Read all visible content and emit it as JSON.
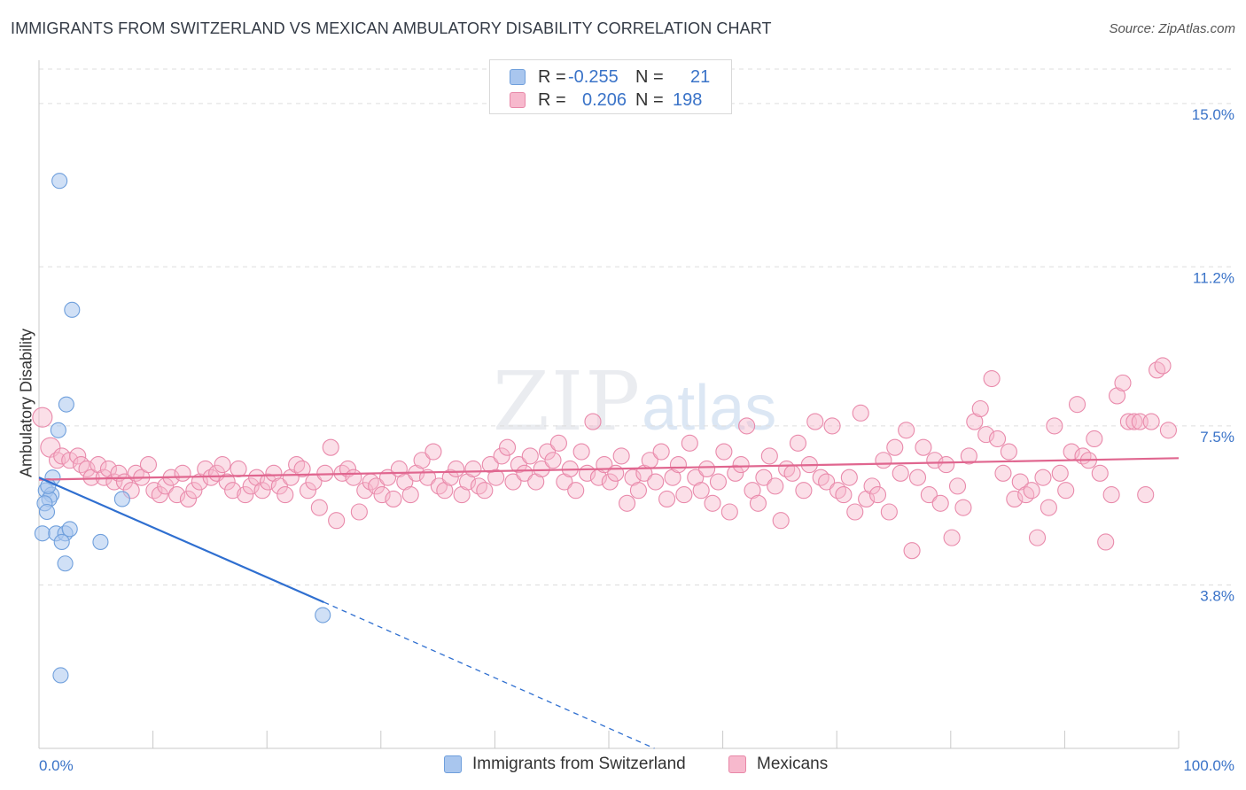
{
  "title": "IMMIGRANTS FROM SWITZERLAND VS MEXICAN AMBULATORY DISABILITY CORRELATION CHART",
  "source": "Source: ZipAtlas.com",
  "watermark": {
    "zip": "ZIP",
    "atlas": "atlas"
  },
  "legend": {
    "r_label": "R =",
    "n_label": "N =",
    "rows": [
      {
        "r": "-0.255",
        "n": "21",
        "color": "#a9c6ee",
        "border": "#6f9fdc"
      },
      {
        "r": "0.206",
        "n": "198",
        "color": "#f7b9cd",
        "border": "#e888a8"
      }
    ]
  },
  "bottom_legend": [
    {
      "label": "Immigrants from Switzerland",
      "color": "#a9c6ee",
      "border": "#6f9fdc"
    },
    {
      "label": "Mexicans",
      "color": "#f7b9cd",
      "border": "#e888a8"
    }
  ],
  "colors": {
    "blue_line": "#2f6fd0",
    "pink_line": "#e0668f",
    "blue_fill": "rgba(169,198,238,0.55)",
    "blue_stroke": "#6f9fdc",
    "pink_fill": "rgba(247,185,205,0.45)",
    "pink_stroke": "#e98aab",
    "tick_label": "#3a73c8",
    "grid": "#dddddd"
  },
  "chart_data": {
    "type": "scatter",
    "title": "IMMIGRANTS FROM SWITZERLAND VS MEXICAN AMBULATORY DISABILITY CORRELATION CHART",
    "xlabel": "",
    "ylabel": "Ambulatory Disability",
    "xlim": [
      0,
      100
    ],
    "ylim": [
      0,
      15.8
    ],
    "x_tick_labels": [
      "0.0%",
      "100.0%"
    ],
    "y_ticks": [
      3.8,
      7.5,
      11.2,
      15.0
    ],
    "y_tick_labels": [
      "3.8%",
      "7.5%",
      "11.2%",
      "15.0%"
    ],
    "grid": "horizontal dashed",
    "series": [
      {
        "name": "Immigrants from Switzerland",
        "trend": {
          "x": [
            0,
            25
          ],
          "y": [
            6.3,
            3.4
          ],
          "dashed_extension_to": [
            54,
            0
          ]
        },
        "points": [
          [
            1.8,
            13.2
          ],
          [
            2.9,
            10.2
          ],
          [
            2.4,
            8.0
          ],
          [
            1.7,
            7.4
          ],
          [
            1.2,
            6.3
          ],
          [
            0.6,
            6.0
          ],
          [
            1.1,
            5.9
          ],
          [
            0.9,
            5.8
          ],
          [
            0.5,
            5.7
          ],
          [
            0.7,
            5.5
          ],
          [
            7.3,
            5.8
          ],
          [
            0.3,
            5.0
          ],
          [
            1.5,
            5.0
          ],
          [
            2.3,
            5.0
          ],
          [
            2.7,
            5.1
          ],
          [
            2.0,
            4.8
          ],
          [
            5.4,
            4.8
          ],
          [
            2.3,
            4.3
          ],
          [
            24.9,
            3.1
          ],
          [
            1.9,
            1.7
          ],
          [
            0.8,
            6.1
          ]
        ]
      },
      {
        "name": "Mexicans",
        "trend": {
          "x": [
            0,
            100
          ],
          "y": [
            6.25,
            6.75
          ]
        },
        "points": [
          [
            0.3,
            7.7
          ],
          [
            1.0,
            7.0
          ],
          [
            1.6,
            6.7
          ],
          [
            2.0,
            6.8
          ],
          [
            2.7,
            6.7
          ],
          [
            3.4,
            6.8
          ],
          [
            3.7,
            6.6
          ],
          [
            4.2,
            6.5
          ],
          [
            4.6,
            6.3
          ],
          [
            5.2,
            6.6
          ],
          [
            5.7,
            6.3
          ],
          [
            6.1,
            6.5
          ],
          [
            6.6,
            6.2
          ],
          [
            7.0,
            6.4
          ],
          [
            7.5,
            6.2
          ],
          [
            8.1,
            6.0
          ],
          [
            8.5,
            6.4
          ],
          [
            9.0,
            6.3
          ],
          [
            9.6,
            6.6
          ],
          [
            10.1,
            6.0
          ],
          [
            10.6,
            5.9
          ],
          [
            11.1,
            6.1
          ],
          [
            11.6,
            6.3
          ],
          [
            12.1,
            5.9
          ],
          [
            12.6,
            6.4
          ],
          [
            13.1,
            5.8
          ],
          [
            13.6,
            6.0
          ],
          [
            14.1,
            6.2
          ],
          [
            14.6,
            6.5
          ],
          [
            15.1,
            6.3
          ],
          [
            15.6,
            6.4
          ],
          [
            16.1,
            6.6
          ],
          [
            16.5,
            6.2
          ],
          [
            17.0,
            6.0
          ],
          [
            17.5,
            6.5
          ],
          [
            18.1,
            5.9
          ],
          [
            18.6,
            6.1
          ],
          [
            19.1,
            6.3
          ],
          [
            19.6,
            6.0
          ],
          [
            20.1,
            6.2
          ],
          [
            20.6,
            6.4
          ],
          [
            21.1,
            6.1
          ],
          [
            21.6,
            5.9
          ],
          [
            22.1,
            6.3
          ],
          [
            22.6,
            6.6
          ],
          [
            23.1,
            6.5
          ],
          [
            23.6,
            6.0
          ],
          [
            24.1,
            6.2
          ],
          [
            24.6,
            5.6
          ],
          [
            25.1,
            6.4
          ],
          [
            25.6,
            7.0
          ],
          [
            26.1,
            5.3
          ],
          [
            26.6,
            6.4
          ],
          [
            27.1,
            6.5
          ],
          [
            27.6,
            6.3
          ],
          [
            28.1,
            5.5
          ],
          [
            28.6,
            6.0
          ],
          [
            29.1,
            6.2
          ],
          [
            29.6,
            6.1
          ],
          [
            30.1,
            5.9
          ],
          [
            30.6,
            6.3
          ],
          [
            31.1,
            5.8
          ],
          [
            31.6,
            6.5
          ],
          [
            32.1,
            6.2
          ],
          [
            32.6,
            5.9
          ],
          [
            33.1,
            6.4
          ],
          [
            33.6,
            6.7
          ],
          [
            34.1,
            6.3
          ],
          [
            34.6,
            6.9
          ],
          [
            35.1,
            6.1
          ],
          [
            35.6,
            6.0
          ],
          [
            36.1,
            6.3
          ],
          [
            36.6,
            6.5
          ],
          [
            37.1,
            5.9
          ],
          [
            37.6,
            6.2
          ],
          [
            38.1,
            6.5
          ],
          [
            38.6,
            6.1
          ],
          [
            39.1,
            6.0
          ],
          [
            39.6,
            6.6
          ],
          [
            40.1,
            6.3
          ],
          [
            40.6,
            6.8
          ],
          [
            41.1,
            7.0
          ],
          [
            41.6,
            6.2
          ],
          [
            42.1,
            6.6
          ],
          [
            42.6,
            6.4
          ],
          [
            43.1,
            6.8
          ],
          [
            43.6,
            6.2
          ],
          [
            44.1,
            6.5
          ],
          [
            44.6,
            6.9
          ],
          [
            45.1,
            6.7
          ],
          [
            45.6,
            7.1
          ],
          [
            46.1,
            6.2
          ],
          [
            46.6,
            6.5
          ],
          [
            47.1,
            6.0
          ],
          [
            47.6,
            6.9
          ],
          [
            48.1,
            6.4
          ],
          [
            48.6,
            7.6
          ],
          [
            49.1,
            6.3
          ],
          [
            49.6,
            6.6
          ],
          [
            50.1,
            6.2
          ],
          [
            50.6,
            6.4
          ],
          [
            51.1,
            6.8
          ],
          [
            51.6,
            5.7
          ],
          [
            52.1,
            6.3
          ],
          [
            52.6,
            6.0
          ],
          [
            53.1,
            6.4
          ],
          [
            53.6,
            6.7
          ],
          [
            54.1,
            6.2
          ],
          [
            54.6,
            6.9
          ],
          [
            55.1,
            5.8
          ],
          [
            55.6,
            6.3
          ],
          [
            56.1,
            6.6
          ],
          [
            56.6,
            5.9
          ],
          [
            57.1,
            7.1
          ],
          [
            57.6,
            6.3
          ],
          [
            58.1,
            6.0
          ],
          [
            58.6,
            6.5
          ],
          [
            59.1,
            5.7
          ],
          [
            59.6,
            6.2
          ],
          [
            60.1,
            6.9
          ],
          [
            60.6,
            5.5
          ],
          [
            61.1,
            6.4
          ],
          [
            61.6,
            6.6
          ],
          [
            62.1,
            7.5
          ],
          [
            62.6,
            6.0
          ],
          [
            63.1,
            5.7
          ],
          [
            63.6,
            6.3
          ],
          [
            64.1,
            6.8
          ],
          [
            64.6,
            6.1
          ],
          [
            65.1,
            5.3
          ],
          [
            65.6,
            6.5
          ],
          [
            66.1,
            6.4
          ],
          [
            66.6,
            7.1
          ],
          [
            67.1,
            6.0
          ],
          [
            67.6,
            6.6
          ],
          [
            68.1,
            7.6
          ],
          [
            68.6,
            6.3
          ],
          [
            69.1,
            6.2
          ],
          [
            69.6,
            7.5
          ],
          [
            70.1,
            6.0
          ],
          [
            70.6,
            5.9
          ],
          [
            71.1,
            6.3
          ],
          [
            71.6,
            5.5
          ],
          [
            72.1,
            7.8
          ],
          [
            72.6,
            5.8
          ],
          [
            73.1,
            6.1
          ],
          [
            73.6,
            5.9
          ],
          [
            74.1,
            6.7
          ],
          [
            74.6,
            5.5
          ],
          [
            75.1,
            7.0
          ],
          [
            75.6,
            6.4
          ],
          [
            76.1,
            7.4
          ],
          [
            76.6,
            4.6
          ],
          [
            77.1,
            6.3
          ],
          [
            77.6,
            7.0
          ],
          [
            78.1,
            5.9
          ],
          [
            78.6,
            6.7
          ],
          [
            79.1,
            5.7
          ],
          [
            79.6,
            6.6
          ],
          [
            80.1,
            4.9
          ],
          [
            80.6,
            6.1
          ],
          [
            81.1,
            5.6
          ],
          [
            81.6,
            6.8
          ],
          [
            82.1,
            7.6
          ],
          [
            82.6,
            7.9
          ],
          [
            83.1,
            7.3
          ],
          [
            83.6,
            8.6
          ],
          [
            84.1,
            7.2
          ],
          [
            84.6,
            6.4
          ],
          [
            85.1,
            6.9
          ],
          [
            85.6,
            5.8
          ],
          [
            86.1,
            6.2
          ],
          [
            86.6,
            5.9
          ],
          [
            87.1,
            6.0
          ],
          [
            87.6,
            4.9
          ],
          [
            88.1,
            6.3
          ],
          [
            88.6,
            5.6
          ],
          [
            89.1,
            7.5
          ],
          [
            89.6,
            6.4
          ],
          [
            90.1,
            6.0
          ],
          [
            90.6,
            6.9
          ],
          [
            91.1,
            8.0
          ],
          [
            91.6,
            6.8
          ],
          [
            92.1,
            6.7
          ],
          [
            92.6,
            7.2
          ],
          [
            93.1,
            6.4
          ],
          [
            93.6,
            4.8
          ],
          [
            94.1,
            5.9
          ],
          [
            94.6,
            8.2
          ],
          [
            95.1,
            8.5
          ],
          [
            95.6,
            7.6
          ],
          [
            96.1,
            7.6
          ],
          [
            96.6,
            7.6
          ],
          [
            97.1,
            5.9
          ],
          [
            97.6,
            7.6
          ],
          [
            98.1,
            8.8
          ],
          [
            98.6,
            8.9
          ],
          [
            99.1,
            7.4
          ]
        ]
      }
    ]
  }
}
